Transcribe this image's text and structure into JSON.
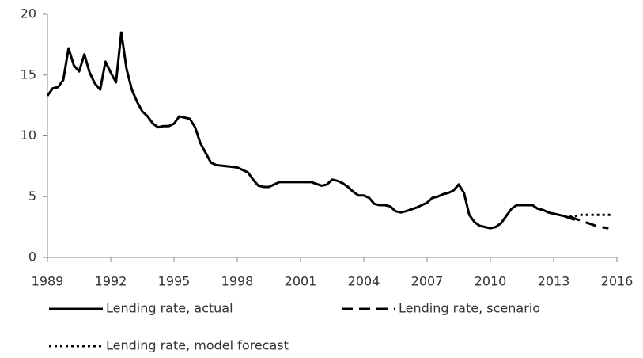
{
  "chart_data": {
    "type": "line",
    "xlim": [
      1989,
      2016
    ],
    "xticks": [
      1989,
      1992,
      1995,
      1998,
      2001,
      2004,
      2007,
      2010,
      2013,
      2016
    ],
    "ylim": [
      0,
      20
    ],
    "yticks": [
      0,
      5,
      10,
      15,
      20
    ],
    "grid": false,
    "legend": "bottom",
    "series": [
      {
        "name": "Lending rate, actual",
        "color": "#000000",
        "dash": "solid",
        "x": [
          1989,
          1989.25,
          1989.5,
          1989.75,
          1990,
          1990.25,
          1990.5,
          1990.75,
          1991,
          1991.25,
          1991.5,
          1991.75,
          1992,
          1992.25,
          1992.5,
          1992.75,
          1993,
          1993.25,
          1993.5,
          1993.75,
          1994,
          1994.25,
          1994.5,
          1994.75,
          1995,
          1995.25,
          1995.5,
          1995.75,
          1996,
          1996.25,
          1996.5,
          1996.75,
          1997,
          1997.5,
          1998,
          1998.25,
          1998.5,
          1998.75,
          1999,
          1999.25,
          1999.5,
          1999.75,
          2000,
          2000.5,
          2001,
          2001.5,
          2002,
          2002.25,
          2002.5,
          2002.75,
          2003,
          2003.25,
          2003.5,
          2003.75,
          2004,
          2004.25,
          2004.5,
          2004.75,
          2005,
          2005.25,
          2005.5,
          2005.75,
          2006,
          2006.5,
          2007,
          2007.25,
          2007.5,
          2007.75,
          2008,
          2008.25,
          2008.5,
          2008.75,
          2009,
          2009.25,
          2009.5,
          2009.75,
          2010,
          2010.25,
          2010.5,
          2010.75,
          2011,
          2011.25,
          2011.5,
          2011.75,
          2012,
          2012.25,
          2012.5,
          2012.75,
          2013,
          2013.5,
          2014
        ],
        "values": [
          13.3,
          13.9,
          14.0,
          14.6,
          17.2,
          15.8,
          15.3,
          16.7,
          15.2,
          14.3,
          13.8,
          16.1,
          15.2,
          14.4,
          18.5,
          15.5,
          13.8,
          12.8,
          12.0,
          11.6,
          11.0,
          10.7,
          10.8,
          10.8,
          11.0,
          11.6,
          11.5,
          11.4,
          10.7,
          9.4,
          8.6,
          7.8,
          7.6,
          7.5,
          7.4,
          7.2,
          7.0,
          6.4,
          5.9,
          5.8,
          5.8,
          6.0,
          6.2,
          6.2,
          6.2,
          6.2,
          5.9,
          6.0,
          6.4,
          6.3,
          6.1,
          5.8,
          5.4,
          5.1,
          5.1,
          4.9,
          4.4,
          4.3,
          4.3,
          4.2,
          3.8,
          3.7,
          3.8,
          4.1,
          4.5,
          4.9,
          5.0,
          5.2,
          5.3,
          5.5,
          6.0,
          5.3,
          3.5,
          2.9,
          2.6,
          2.5,
          2.4,
          2.5,
          2.8,
          3.4,
          4.0,
          4.3,
          4.3,
          4.3,
          4.3,
          4.0,
          3.9,
          3.7,
          3.6,
          3.4,
          3.1
        ]
      },
      {
        "name": "Lending rate, scenario",
        "color": "#000000",
        "dash": "dashed",
        "x": [
          2013.75,
          2014,
          2015,
          2015.25,
          2015.6
        ],
        "values": [
          3.4,
          3.2,
          2.6,
          2.5,
          2.4
        ]
      },
      {
        "name": "Lending rate, model forecast",
        "color": "#000000",
        "dash": "dotted",
        "x": [
          2013.75,
          2014.25,
          2014.75,
          2015.25,
          2015.75
        ],
        "values": [
          3.3,
          3.5,
          3.5,
          3.5,
          3.5
        ]
      }
    ]
  }
}
